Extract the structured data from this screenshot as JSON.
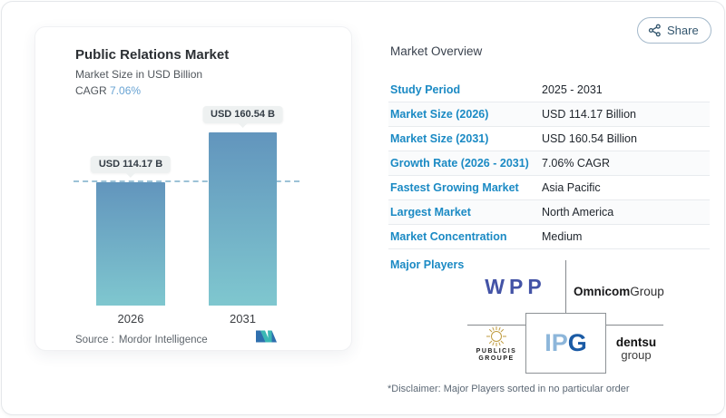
{
  "share": {
    "label": "Share"
  },
  "chart_card": {
    "title": "Public Relations Market",
    "subtitle": "Market Size in USD Billion",
    "cagr_label": "CAGR",
    "cagr_value": "7.06%",
    "source_label": "Source :",
    "source_value": "Mordor Intelligence"
  },
  "chart_data": {
    "type": "bar",
    "title": "Public Relations Market",
    "subtitle": "Market Size in USD Billion",
    "unit": "USD Billion",
    "categories": [
      "2026",
      "2031"
    ],
    "values": [
      114.17,
      160.54
    ],
    "value_labels": [
      "USD 114.17 B",
      "USD 160.54 B"
    ],
    "ylim": [
      0,
      170
    ],
    "grid": false,
    "reference_line": {
      "value": 114.17,
      "style": "dashed",
      "color": "#9cc2d7"
    },
    "bar_gradient_top": "#6295bd",
    "bar_gradient_bottom": "#7fc7cf"
  },
  "overview": {
    "title": "Market Overview",
    "rows": [
      {
        "label": "Study Period",
        "value": "2025 - 2031"
      },
      {
        "label": "Market Size (2026)",
        "value": "USD 114.17 Billion"
      },
      {
        "label": "Market Size (2031)",
        "value": "USD 160.54 Billion"
      },
      {
        "label": "Growth Rate (2026 - 2031)",
        "value": "7.06% CAGR"
      },
      {
        "label": "Fastest Growing Market",
        "value": "Asia Pacific"
      },
      {
        "label": "Largest Market",
        "value": "North America"
      },
      {
        "label": "Market Concentration",
        "value": "Medium"
      }
    ],
    "major_players_label": "Major Players",
    "major_players": [
      "WPP",
      "Omnicom Group",
      "Publicis Groupe",
      "IPG",
      "dentsu group"
    ],
    "logos": {
      "wpp": "WPP",
      "omnicom_bold": "Omnicom",
      "omnicom_light": "Group",
      "publicis_line1": "PUBLICIS",
      "publicis_line2": "GROUPE",
      "ipg_light": "IP",
      "ipg_dark": "G",
      "dentsu_bold": "dentsu",
      "dentsu_light": "group"
    },
    "disclaimer": "*Disclaimer: Major Players sorted in no particular order"
  },
  "colors": {
    "accent_blue": "#1b8ac4",
    "cagr_blue": "#68a3d3",
    "share_text": "#33566e",
    "wpp_blue": "#4353a6",
    "ipg_light_blue": "#8db6da",
    "ipg_dark_blue": "#1b5ba5",
    "mordor_teal": "#3bb7b4",
    "mordor_blue": "#2f6fae"
  }
}
